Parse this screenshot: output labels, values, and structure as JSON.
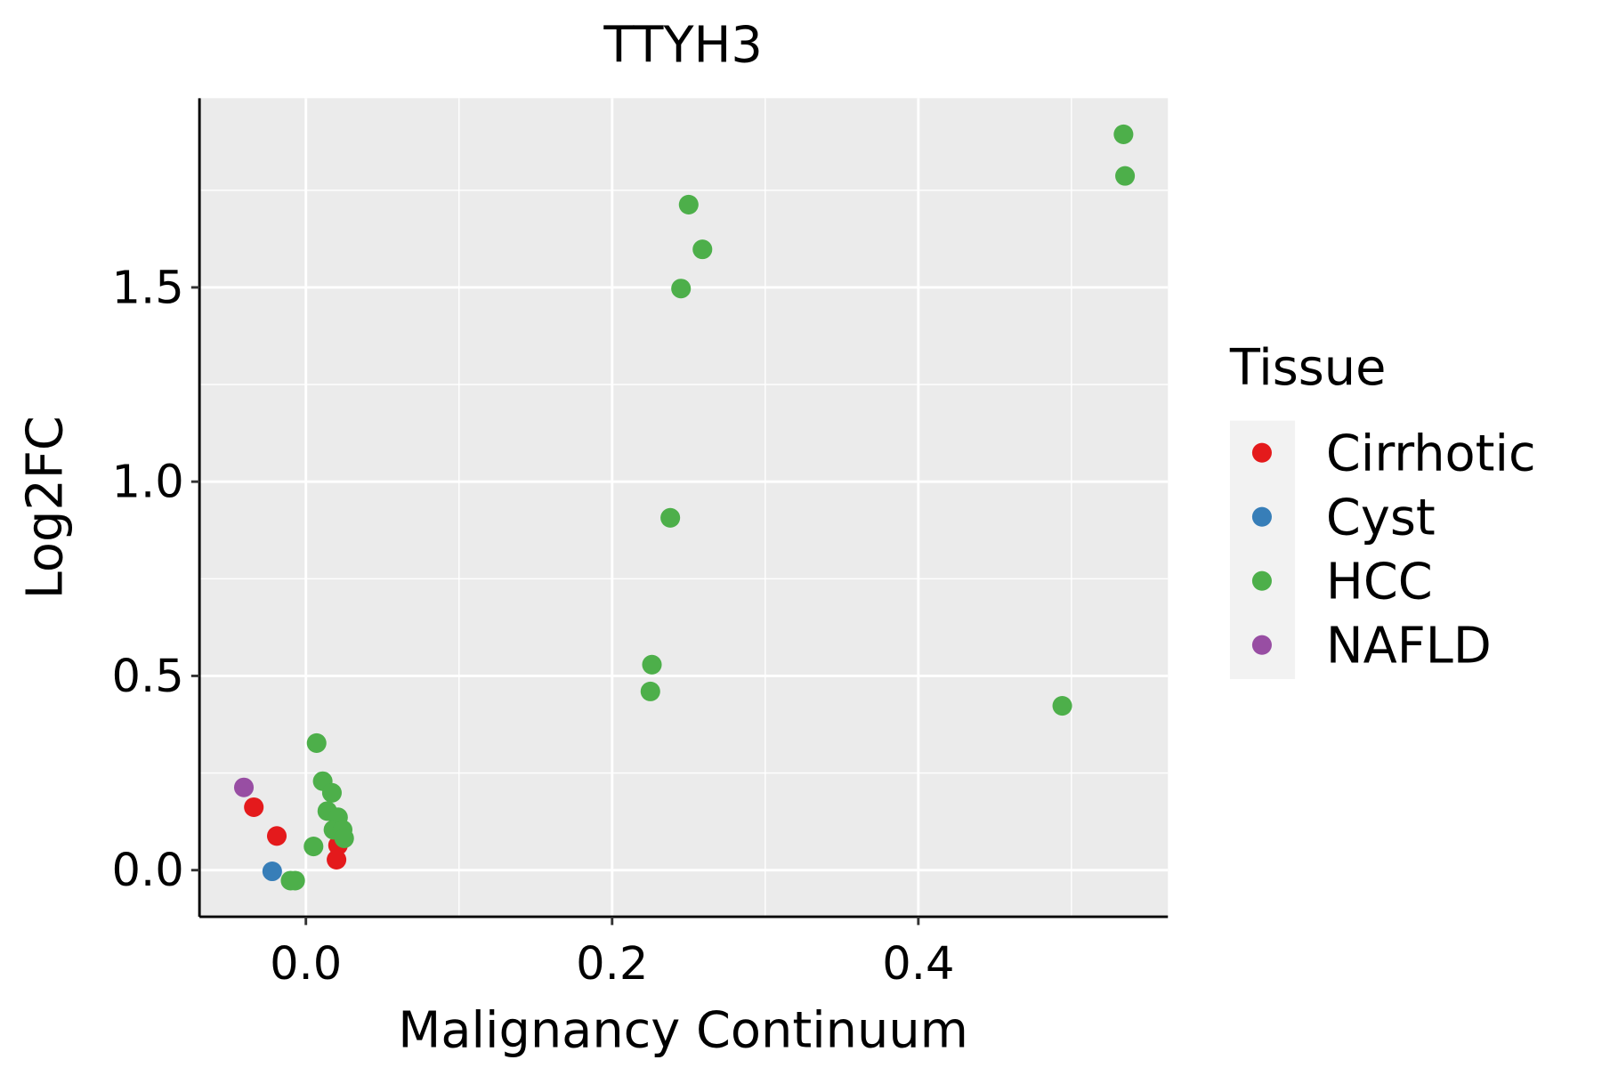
{
  "chart_data": {
    "type": "scatter",
    "title": "TTYH3",
    "xlabel": "Malignancy Continuum",
    "ylabel": "Log2FC",
    "xlim": [
      -0.0695,
      0.563
    ],
    "ylim": [
      -0.12,
      1.987
    ],
    "xticks": [
      0.0,
      0.2,
      0.4
    ],
    "xtick_labels": [
      "0.0",
      "0.2",
      "0.4"
    ],
    "xminor": [
      -0.1,
      0.1,
      0.3,
      0.5
    ],
    "yticks": [
      0.0,
      0.5,
      1.0,
      1.5
    ],
    "ytick_labels": [
      "0.0",
      "0.5",
      "1.0",
      "1.5"
    ],
    "yminor": [
      0.25,
      0.75,
      1.25,
      1.75
    ],
    "grid": true,
    "legend": {
      "title": "Tissue",
      "placement": "right"
    },
    "series": [
      {
        "name": "Cirrhotic",
        "color": "#E41A1C",
        "points": [
          [
            -0.034,
            0.162
          ],
          [
            -0.019,
            0.088
          ],
          [
            0.021,
            0.064
          ],
          [
            0.02,
            0.027
          ]
        ]
      },
      {
        "name": "Cyst",
        "color": "#377EB8",
        "points": [
          [
            -0.022,
            -0.003
          ]
        ]
      },
      {
        "name": "HCC",
        "color": "#4DAF4A",
        "points": [
          [
            0.534,
            1.894
          ],
          [
            0.535,
            1.787
          ],
          [
            0.25,
            1.713
          ],
          [
            0.259,
            1.598
          ],
          [
            0.245,
            1.497
          ],
          [
            0.238,
            0.907
          ],
          [
            0.226,
            0.529
          ],
          [
            0.225,
            0.46
          ],
          [
            0.494,
            0.423
          ],
          [
            0.007,
            0.327
          ],
          [
            0.011,
            0.229
          ],
          [
            0.017,
            0.199
          ],
          [
            0.014,
            0.152
          ],
          [
            0.021,
            0.136
          ],
          [
            0.018,
            0.104
          ],
          [
            0.024,
            0.104
          ],
          [
            0.025,
            0.082
          ],
          [
            0.005,
            0.061
          ],
          [
            -0.01,
            -0.027
          ],
          [
            -0.007,
            -0.027
          ]
        ]
      },
      {
        "name": "NAFLD",
        "color": "#984EA3",
        "points": [
          [
            -0.0405,
            0.213
          ]
        ]
      }
    ]
  }
}
